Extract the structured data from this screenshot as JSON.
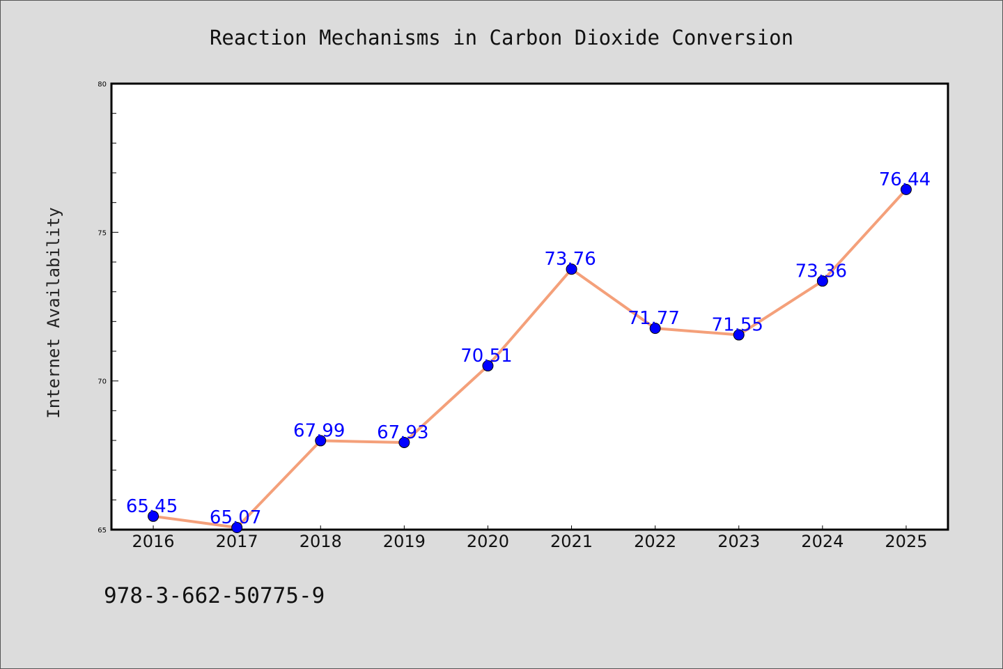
{
  "chart_data": {
    "type": "line",
    "title": "Reaction Mechanisms in Carbon Dioxide Conversion",
    "xlabel": "",
    "ylabel": "Internet Availability",
    "x": [
      "2016",
      "2017",
      "2018",
      "2019",
      "2020",
      "2021",
      "2022",
      "2023",
      "2024",
      "2025"
    ],
    "series": [
      {
        "values": [
          65.45,
          65.07,
          67.99,
          67.93,
          70.51,
          73.76,
          71.77,
          71.55,
          73.36,
          76.44
        ],
        "data_labels": [
          "65.45",
          "65.07",
          "67.99",
          "67.93",
          "70.51",
          "73.76",
          "71.77",
          "71.55",
          "73.36",
          "76.44"
        ],
        "line_color": "#f4a07a",
        "marker_color": "#0000ff",
        "label_color": "#0000ff"
      }
    ],
    "ylim": [
      65,
      80
    ],
    "yticks": [
      "65",
      "70",
      "75",
      "80"
    ],
    "yminor_step": 1,
    "grid": false,
    "legend": "none"
  },
  "footer": {
    "text": "978-3-662-50775-9"
  },
  "colors": {
    "figure_background": "#dcdcdc",
    "plot_background": "#ffffff",
    "axes_edge": "#000000"
  }
}
